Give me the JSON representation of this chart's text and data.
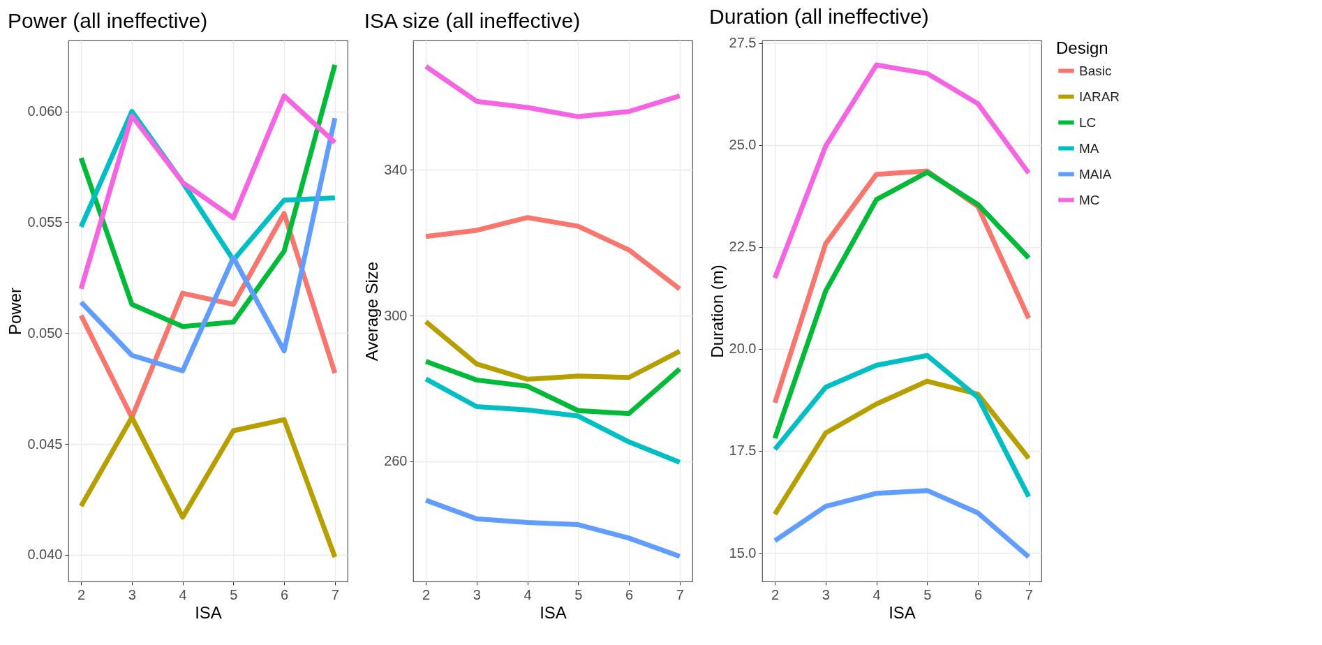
{
  "chart_data": [
    {
      "type": "line",
      "title": "Power (all ineffective)",
      "xlabel": "ISA",
      "ylabel": "Power",
      "x": [
        2,
        3,
        4,
        5,
        6,
        7
      ],
      "xlim": [
        1.75,
        7.25
      ],
      "xticks": [
        2,
        3,
        4,
        5,
        6,
        7
      ],
      "ylim": [
        0.0388,
        0.0632
      ],
      "yticks": [
        {
          "value": 0.04,
          "label": "0.040"
        },
        {
          "value": 0.045,
          "label": "0.045"
        },
        {
          "value": 0.05,
          "label": "0.050"
        },
        {
          "value": 0.055,
          "label": "0.055"
        },
        {
          "value": 0.06,
          "label": "0.060"
        }
      ],
      "grid": true,
      "legend": "right",
      "series": [
        {
          "name": "Basic",
          "color": "#f8766d",
          "values": [
            0.0508,
            0.0462,
            0.0518,
            0.0513,
            0.0554,
            0.0482
          ]
        },
        {
          "name": "IARAR",
          "color": "#b79f00",
          "values": [
            0.0422,
            0.0462,
            0.0417,
            0.0456,
            0.0461,
            0.0399
          ]
        },
        {
          "name": "LC",
          "color": "#00ba38",
          "values": [
            0.0579,
            0.0513,
            0.0503,
            0.0505,
            0.0537,
            0.0621
          ]
        },
        {
          "name": "MA",
          "color": "#00bfc4",
          "values": [
            0.0548,
            0.06,
            0.0568,
            0.0533,
            0.056,
            0.0561
          ]
        },
        {
          "name": "MAIA",
          "color": "#619cff",
          "values": [
            0.0514,
            0.049,
            0.0483,
            0.0534,
            0.0492,
            0.0597
          ]
        },
        {
          "name": "MC",
          "color": "#f564e3",
          "values": [
            0.052,
            0.0598,
            0.0568,
            0.0552,
            0.0607,
            0.0586
          ]
        }
      ]
    },
    {
      "type": "line",
      "title": "ISA size (all ineffective)",
      "xlabel": "ISA",
      "ylabel": "Average Size",
      "x": [
        2,
        3,
        4,
        5,
        6,
        7
      ],
      "xlim": [
        1.75,
        7.25
      ],
      "xticks": [
        2,
        3,
        4,
        5,
        6,
        7
      ],
      "ylim": [
        227,
        375.5
      ],
      "yticks": [
        260,
        300,
        340
      ],
      "grid": true,
      "legend": "right",
      "series": [
        {
          "name": "Basic",
          "color": "#f8766d",
          "values": [
            321.7,
            323.4,
            326.9,
            324.5,
            318.0,
            307.3
          ]
        },
        {
          "name": "IARAR",
          "color": "#b79f00",
          "values": [
            298.3,
            286.7,
            282.5,
            283.4,
            283.0,
            290.2
          ]
        },
        {
          "name": "LC",
          "color": "#00ba38",
          "values": [
            287.4,
            282.3,
            280.6,
            273.9,
            273.1,
            285.3
          ]
        },
        {
          "name": "MA",
          "color": "#00bfc4",
          "values": [
            282.6,
            275.0,
            274.1,
            272.4,
            265.3,
            259.7
          ]
        },
        {
          "name": "MAIA",
          "color": "#619cff",
          "values": [
            249.3,
            244.2,
            243.2,
            242.6,
            238.9,
            233.9
          ]
        },
        {
          "name": "MC",
          "color": "#f564e3",
          "values": [
            368.4,
            358.8,
            357.1,
            354.6,
            356.0,
            360.3
          ]
        }
      ]
    },
    {
      "type": "line",
      "title": "Duration (all ineffective)",
      "xlabel": "ISA",
      "ylabel": "Duration (m)",
      "legend_title": "Design",
      "x": [
        2,
        3,
        4,
        5,
        6,
        7
      ],
      "xlim": [
        1.75,
        7.25
      ],
      "xticks": [
        2,
        3,
        4,
        5,
        6,
        7
      ],
      "ylim": [
        14.3,
        27.56
      ],
      "yticks": [
        {
          "value": 15,
          "label": "15.0"
        },
        {
          "value": 17.5,
          "label": "17.5"
        },
        {
          "value": 20,
          "label": "20.0"
        },
        {
          "value": 22.5,
          "label": "22.5"
        },
        {
          "value": 25,
          "label": "25.0"
        },
        {
          "value": 27.5,
          "label": "27.5"
        }
      ],
      "grid": true,
      "legend": "right",
      "series": [
        {
          "name": "Basic",
          "color": "#f8766d",
          "values": [
            18.68,
            22.58,
            24.28,
            24.36,
            23.49,
            20.75
          ]
        },
        {
          "name": "IARAR",
          "color": "#b79f00",
          "values": [
            15.95,
            17.94,
            18.65,
            19.21,
            18.89,
            17.32
          ]
        },
        {
          "name": "LC",
          "color": "#00ba38",
          "values": [
            17.81,
            21.42,
            23.66,
            24.33,
            23.54,
            22.23
          ]
        },
        {
          "name": "MA",
          "color": "#00bfc4",
          "values": [
            17.54,
            19.06,
            19.6,
            19.84,
            18.81,
            16.38
          ]
        },
        {
          "name": "MAIA",
          "color": "#619cff",
          "values": [
            15.3,
            16.14,
            16.46,
            16.53,
            15.98,
            14.9
          ]
        },
        {
          "name": "MC",
          "color": "#f564e3",
          "values": [
            21.74,
            24.97,
            26.96,
            26.75,
            26.01,
            24.31
          ]
        }
      ]
    }
  ]
}
